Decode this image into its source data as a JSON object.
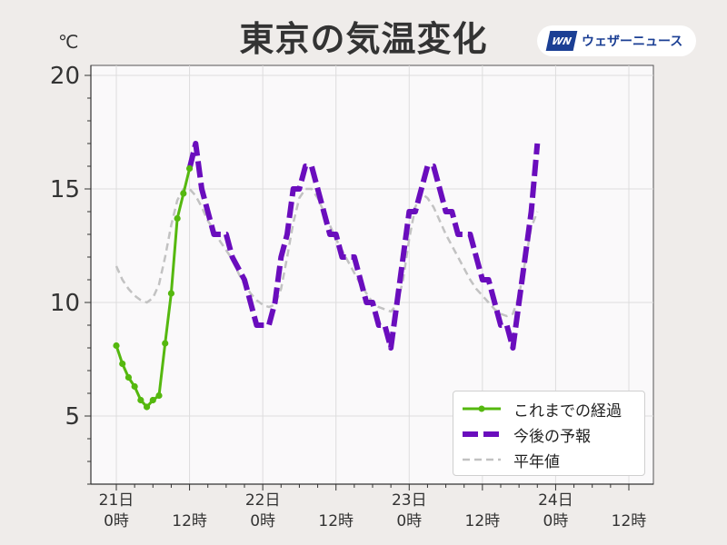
{
  "header": {
    "title": "東京の気温変化",
    "unit": "℃",
    "logo_mark": "WN",
    "logo_text": "ウェザーニュース"
  },
  "colors": {
    "observed": "#55b80f",
    "forecast": "#6a0dbd",
    "normal": "#c2c2c2",
    "plot_bg": "#faf9fa",
    "grid": "#dddddd"
  },
  "chart_data": {
    "type": "line",
    "title": "東京の気温変化",
    "xlabel": "",
    "ylabel": "℃",
    "xlim": [
      0,
      84
    ],
    "ylim": [
      2,
      20.5
    ],
    "yticks": [
      5,
      10,
      15,
      20
    ],
    "grid": true,
    "legend_position": "bottom-right",
    "x_tick_labels": [
      {
        "x": 0,
        "lines": [
          "21日",
          "0時"
        ]
      },
      {
        "x": 12,
        "lines": [
          "",
          "12時"
        ]
      },
      {
        "x": 24,
        "lines": [
          "22日",
          "0時"
        ]
      },
      {
        "x": 36,
        "lines": [
          "",
          "12時"
        ]
      },
      {
        "x": 48,
        "lines": [
          "23日",
          "0時"
        ]
      },
      {
        "x": 60,
        "lines": [
          "",
          "12時"
        ]
      },
      {
        "x": 72,
        "lines": [
          "24日",
          "0時"
        ]
      },
      {
        "x": 84,
        "lines": [
          "",
          "12時"
        ]
      }
    ],
    "series": [
      {
        "name": "これまでの経過",
        "style": "solid-markers",
        "points": [
          [
            0,
            8.1
          ],
          [
            1,
            7.3
          ],
          [
            2,
            6.7
          ],
          [
            3,
            6.3
          ],
          [
            4,
            5.7
          ],
          [
            5,
            5.4
          ],
          [
            6,
            5.7
          ],
          [
            7,
            5.9
          ],
          [
            8,
            8.2
          ],
          [
            9,
            10.4
          ],
          [
            10,
            13.7
          ],
          [
            11,
            14.8
          ],
          [
            12,
            15.9
          ]
        ]
      },
      {
        "name": "今後の予報",
        "style": "dashed-thick",
        "points": [
          [
            12,
            15.9
          ],
          [
            13,
            17.0
          ],
          [
            14,
            15.0
          ],
          [
            15,
            14.0
          ],
          [
            16,
            13.0
          ],
          [
            18,
            13.0
          ],
          [
            19,
            12.0
          ],
          [
            21,
            11.0
          ],
          [
            22,
            10.0
          ],
          [
            23,
            9.0
          ],
          [
            25,
            9.0
          ],
          [
            26,
            10.0
          ],
          [
            27,
            12.0
          ],
          [
            28,
            13.0
          ],
          [
            29,
            15.0
          ],
          [
            30,
            15.0
          ],
          [
            31,
            16.0
          ],
          [
            32,
            16.0
          ],
          [
            33,
            15.0
          ],
          [
            34,
            14.0
          ],
          [
            35,
            13.0
          ],
          [
            36,
            13.0
          ],
          [
            37,
            12.0
          ],
          [
            39,
            12.0
          ],
          [
            40,
            11.0
          ],
          [
            41,
            10.0
          ],
          [
            42,
            10.0
          ],
          [
            43,
            9.0
          ],
          [
            44,
            9.0
          ],
          [
            45,
            8.0
          ],
          [
            46,
            10.0
          ],
          [
            47,
            12.0
          ],
          [
            48,
            14.0
          ],
          [
            49,
            14.0
          ],
          [
            50,
            15.0
          ],
          [
            51,
            16.0
          ],
          [
            52,
            16.0
          ],
          [
            53,
            15.0
          ],
          [
            54,
            14.0
          ],
          [
            55,
            14.0
          ],
          [
            56,
            13.0
          ],
          [
            58,
            13.0
          ],
          [
            59,
            12.0
          ],
          [
            60,
            11.0
          ],
          [
            61,
            11.0
          ],
          [
            62,
            10.0
          ],
          [
            63,
            9.0
          ],
          [
            64,
            9.0
          ],
          [
            65,
            8.0
          ],
          [
            66,
            10.0
          ],
          [
            67,
            12.0
          ],
          [
            68,
            14.0
          ],
          [
            69,
            17.0
          ]
        ]
      },
      {
        "name": "平年値",
        "style": "dashed-thin",
        "points": [
          [
            0,
            11.6
          ],
          [
            1,
            11.0
          ],
          [
            2,
            10.6
          ],
          [
            3,
            10.3
          ],
          [
            4,
            10.1
          ],
          [
            5,
            10.0
          ],
          [
            6,
            10.2
          ],
          [
            7,
            10.8
          ],
          [
            8,
            12.0
          ],
          [
            9,
            13.4
          ],
          [
            10,
            14.5
          ],
          [
            11,
            15.0
          ],
          [
            12,
            15.0
          ],
          [
            13,
            14.7
          ],
          [
            14,
            14.2
          ],
          [
            15,
            13.6
          ],
          [
            16,
            13.2
          ],
          [
            17,
            12.7
          ],
          [
            18,
            12.3
          ],
          [
            19,
            11.9
          ],
          [
            20,
            11.3
          ],
          [
            21,
            10.8
          ],
          [
            22,
            10.4
          ],
          [
            23,
            10.1
          ],
          [
            24,
            9.9
          ],
          [
            25,
            9.8
          ],
          [
            26,
            9.9
          ],
          [
            27,
            10.6
          ],
          [
            28,
            12.0
          ],
          [
            29,
            13.5
          ],
          [
            30,
            14.6
          ],
          [
            31,
            15.0
          ],
          [
            32,
            15.0
          ],
          [
            33,
            14.6
          ],
          [
            34,
            14.0
          ],
          [
            35,
            13.4
          ],
          [
            36,
            12.8
          ],
          [
            37,
            12.3
          ],
          [
            38,
            11.8
          ],
          [
            39,
            11.3
          ],
          [
            40,
            10.8
          ],
          [
            41,
            10.4
          ],
          [
            42,
            10.0
          ],
          [
            43,
            9.8
          ],
          [
            44,
            9.7
          ],
          [
            45,
            9.6
          ],
          [
            46,
            9.9
          ],
          [
            47,
            11.0
          ],
          [
            48,
            12.8
          ],
          [
            49,
            14.2
          ],
          [
            50,
            14.8
          ],
          [
            51,
            14.6
          ],
          [
            52,
            14.2
          ],
          [
            53,
            13.6
          ],
          [
            54,
            13.0
          ],
          [
            55,
            12.5
          ],
          [
            56,
            12.0
          ],
          [
            57,
            11.5
          ],
          [
            58,
            11.0
          ],
          [
            59,
            10.6
          ],
          [
            60,
            10.3
          ],
          [
            61,
            10.0
          ],
          [
            62,
            9.7
          ],
          [
            63,
            9.5
          ],
          [
            64,
            9.4
          ],
          [
            65,
            9.5
          ],
          [
            66,
            10.3
          ],
          [
            67,
            11.8
          ],
          [
            68,
            13.3
          ],
          [
            69,
            14.0
          ]
        ]
      }
    ]
  }
}
